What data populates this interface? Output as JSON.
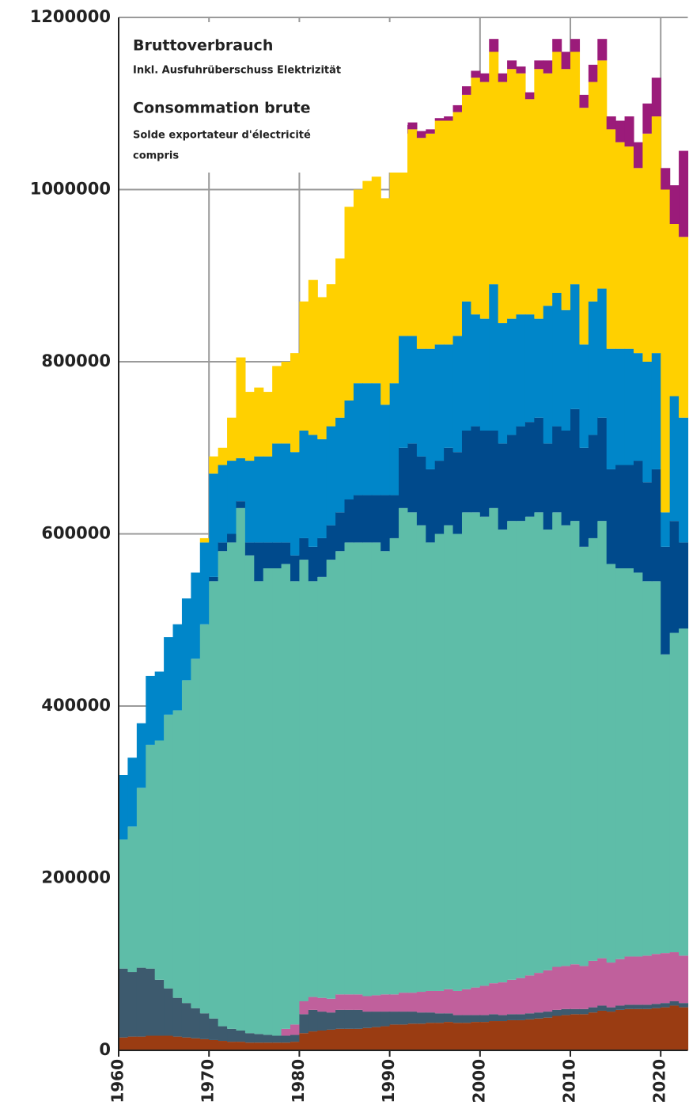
{
  "chart_data": {
    "type": "stacked_bar",
    "annotations": [
      "Bruttoverbrauch",
      "Inkl. Ausfuhrüberschuss Elektrizität",
      "Consommation brute",
      "Solde exportateur d'électricité",
      "compris"
    ],
    "x": [
      1960,
      1961,
      1962,
      1963,
      1964,
      1965,
      1966,
      1967,
      1968,
      1969,
      1970,
      1971,
      1972,
      1973,
      1974,
      1975,
      1976,
      1977,
      1978,
      1979,
      1980,
      1981,
      1982,
      1983,
      1984,
      1985,
      1986,
      1987,
      1988,
      1989,
      1990,
      1991,
      1992,
      1993,
      1994,
      1995,
      1996,
      1997,
      1998,
      1999,
      2000,
      2001,
      2002,
      2003,
      2004,
      2005,
      2006,
      2007,
      2008,
      2009,
      2010,
      2011,
      2012,
      2013,
      2014,
      2015,
      2016,
      2017,
      2018,
      2019,
      2020,
      2021,
      2022
    ],
    "xlim": [
      1960,
      2023
    ],
    "xticks": [
      1960,
      1970,
      1980,
      1990,
      2000,
      2010,
      2020
    ],
    "ylim": [
      0,
      1200000
    ],
    "yticks": [
      0,
      200000,
      400000,
      600000,
      800000,
      1000000,
      1200000
    ],
    "grid": true,
    "series": [
      {
        "color": "#9a3c12",
        "values": [
          15000,
          16000,
          16000,
          17000,
          17000,
          17000,
          16000,
          15000,
          14000,
          13000,
          12000,
          11000,
          10000,
          10000,
          9000,
          9000,
          9000,
          9000,
          9000,
          10000,
          20000,
          22000,
          23000,
          24000,
          25000,
          25000,
          25000,
          26000,
          27000,
          28000,
          30000,
          30000,
          31000,
          31000,
          32000,
          32000,
          33000,
          32000,
          32000,
          33000,
          33000,
          34000,
          34000,
          35000,
          35000,
          36000,
          37000,
          38000,
          40000,
          41000,
          42000,
          42000,
          44000,
          46000,
          45000,
          47000,
          48000,
          48000,
          48000,
          49000,
          50000,
          52000,
          50000
        ]
      },
      {
        "color": "#3d5a6e",
        "values": [
          80000,
          75000,
          80000,
          78000,
          65000,
          55000,
          45000,
          40000,
          35000,
          30000,
          25000,
          17000,
          15000,
          13000,
          11000,
          10000,
          9000,
          8000,
          8000,
          8000,
          22000,
          25000,
          22000,
          20000,
          22000,
          22000,
          22000,
          19000,
          18000,
          17000,
          15000,
          15000,
          14000,
          13000,
          12000,
          11000,
          10000,
          9000,
          9000,
          8000,
          8000,
          8000,
          7000,
          7000,
          7000,
          7000,
          7000,
          7000,
          7000,
          7000,
          6000,
          6000,
          6000,
          6000,
          5000,
          5000,
          5000,
          5000,
          5000,
          5000,
          5000,
          5000,
          5000
        ]
      },
      {
        "color": "#c0609c",
        "values": [
          0,
          0,
          0,
          0,
          0,
          0,
          0,
          0,
          0,
          0,
          0,
          0,
          0,
          0,
          0,
          0,
          0,
          0,
          8000,
          12000,
          15000,
          15000,
          16000,
          16000,
          18000,
          18000,
          18000,
          18000,
          19000,
          20000,
          20000,
          22000,
          22000,
          24000,
          25000,
          26000,
          28000,
          28000,
          30000,
          32000,
          34000,
          36000,
          38000,
          40000,
          42000,
          44000,
          46000,
          48000,
          50000,
          50000,
          52000,
          50000,
          54000,
          55000,
          52000,
          54000,
          56000,
          56000,
          57000,
          58000,
          58000,
          57000,
          55000
        ]
      },
      {
        "color": "#5ebda8",
        "values": [
          150000,
          169000,
          209000,
          260000,
          278000,
          318000,
          334000,
          375000,
          406000,
          452000,
          508000,
          552000,
          565000,
          607000,
          555000,
          526000,
          542000,
          543000,
          540000,
          515000,
          513000,
          483000,
          489000,
          510000,
          515000,
          525000,
          525000,
          527000,
          526000,
          515000,
          530000,
          563000,
          558000,
          542000,
          521000,
          531000,
          539000,
          531000,
          554000,
          552000,
          545000,
          552000,
          526000,
          533000,
          531000,
          533000,
          535000,
          512000,
          528000,
          512000,
          515000,
          487000,
          491000,
          508000,
          463000,
          454000,
          451000,
          446000,
          435000,
          433000,
          347000,
          371000,
          380000
        ]
      },
      {
        "color": "#004a8c",
        "values": [
          0,
          0,
          0,
          0,
          0,
          0,
          0,
          0,
          0,
          0,
          5000,
          10000,
          10000,
          8000,
          15000,
          45000,
          30000,
          30000,
          25000,
          30000,
          25000,
          40000,
          45000,
          40000,
          45000,
          50000,
          55000,
          55000,
          55000,
          65000,
          50000,
          70000,
          80000,
          80000,
          85000,
          85000,
          90000,
          95000,
          95000,
          100000,
          100000,
          90000,
          100000,
          100000,
          110000,
          110000,
          110000,
          100000,
          100000,
          110000,
          130000,
          115000,
          120000,
          120000,
          110000,
          120000,
          120000,
          130000,
          115000,
          130000,
          125000,
          130000,
          100000
        ]
      },
      {
        "color": "#0086c9",
        "values": [
          75000,
          80000,
          75000,
          80000,
          80000,
          90000,
          100000,
          95000,
          100000,
          95000,
          120000,
          90000,
          85000,
          50000,
          95000,
          100000,
          100000,
          115000,
          115000,
          120000,
          125000,
          130000,
          115000,
          115000,
          110000,
          115000,
          130000,
          130000,
          130000,
          105000,
          130000,
          130000,
          125000,
          125000,
          140000,
          135000,
          120000,
          135000,
          150000,
          130000,
          130000,
          170000,
          140000,
          135000,
          130000,
          125000,
          115000,
          160000,
          155000,
          140000,
          145000,
          120000,
          155000,
          150000,
          140000,
          135000,
          135000,
          125000,
          140000,
          135000,
          40000,
          145000,
          145000
        ]
      },
      {
        "color": "#ffd000",
        "values": [
          0,
          0,
          0,
          0,
          0,
          0,
          0,
          0,
          0,
          5000,
          20000,
          20000,
          50000,
          117000,
          80000,
          80000,
          75000,
          90000,
          95000,
          115000,
          150000,
          180000,
          165000,
          165000,
          185000,
          225000,
          225000,
          235000,
          240000,
          240000,
          245000,
          235000,
          240000,
          245000,
          250000,
          260000,
          260000,
          260000,
          240000,
          275000,
          275000,
          270000,
          280000,
          290000,
          280000,
          250000,
          290000,
          270000,
          280000,
          280000,
          270000,
          275000,
          255000,
          265000,
          255000,
          240000,
          235000,
          215000,
          265000,
          275000,
          375000,
          200000,
          210000
        ]
      },
      {
        "color": "#9b1b7a",
        "values": [
          0,
          0,
          0,
          0,
          0,
          0,
          0,
          0,
          0,
          0,
          0,
          0,
          0,
          0,
          0,
          0,
          0,
          0,
          0,
          0,
          0,
          0,
          0,
          0,
          0,
          0,
          0,
          0,
          0,
          0,
          5000,
          10000,
          8000,
          8000,
          5000,
          3000,
          5000,
          8000,
          10000,
          8000,
          10000,
          15000,
          10000,
          10000,
          8000,
          8000,
          10000,
          15000,
          15000,
          20000,
          15000,
          15000,
          20000,
          25000,
          15000,
          25000,
          35000,
          30000,
          35000,
          45000,
          25000,
          45000,
          100000
        ]
      }
    ]
  }
}
